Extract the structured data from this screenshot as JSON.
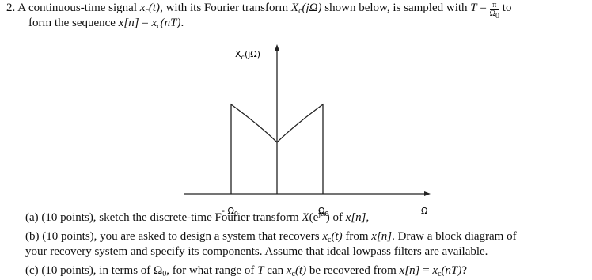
{
  "problem": {
    "number": "2.",
    "statement": [
      [
        "A continuous-time signal ",
        "x",
        "c",
        "(t)",
        ", with its Fourier transform ",
        "X",
        "c",
        "(jΩ)",
        " shown below, is sampled with ",
        "T",
        " = ",
        "π",
        "Ω",
        "0",
        " to"
      ],
      [
        "form the sequence ",
        "x[n]",
        " = ",
        "x",
        "c",
        "(nT)",
        "."
      ]
    ]
  },
  "figure": {
    "y_label": [
      "X",
      "c",
      "(jΩ)"
    ],
    "x_labels": [
      [
        "- Ω",
        "0"
      ],
      [
        "Ω",
        "0"
      ],
      [
        "Ω"
      ]
    ]
  },
  "parts": [
    [
      [
        "(a) (10 points), sketch the discrete-time Fourier transform ",
        "X",
        "(e",
        "jω",
        ")",
        " of ",
        "x[n]",
        ","
      ]
    ],
    [
      [
        "(b) (10 points), you are asked to design a system that recovers ",
        "x",
        "c",
        "(t)",
        " from ",
        "x[n]",
        ". Draw a block diagram of"
      ],
      [
        "your recovery system and specify its components. Assume that ideal lowpass filters are available."
      ]
    ],
    [
      [
        "(c) (10 points), in terms of ",
        "Ω",
        "0",
        ", for what range of ",
        "T",
        " can ",
        "x",
        "c",
        "(t)",
        " be recovered from ",
        "x[n]",
        " = ",
        "x",
        "c",
        "(nT)",
        "?"
      ]
    ]
  ]
}
